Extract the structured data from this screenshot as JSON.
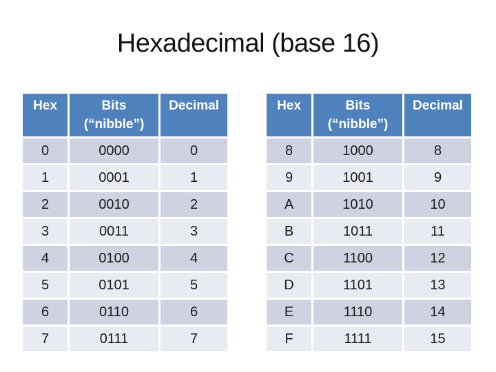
{
  "slide": {
    "title": "Hexadecimal (base 16)"
  },
  "colors": {
    "slide_bg": "#FFFFFF",
    "title_text": "#141414",
    "header_bg": "#4F81BD",
    "header_text": "#FFFFFF",
    "row_band_dark": "#CFD3E1",
    "row_band_light": "#E9EBF3",
    "cell_text": "#1A1A1A"
  },
  "tables": [
    {
      "name": "hex-digits-0-7",
      "header": {
        "hex": "Hex",
        "bits_line1": "Bits",
        "bits_line2": "(“nibble”)",
        "decimal": "Decimal"
      },
      "rows": [
        {
          "hex": "0",
          "bits": "0000",
          "decimal": "0"
        },
        {
          "hex": "1",
          "bits": "0001",
          "decimal": "1"
        },
        {
          "hex": "2",
          "bits": "0010",
          "decimal": "2"
        },
        {
          "hex": "3",
          "bits": "0011",
          "decimal": "3"
        },
        {
          "hex": "4",
          "bits": "0100",
          "decimal": "4"
        },
        {
          "hex": "5",
          "bits": "0101",
          "decimal": "5"
        },
        {
          "hex": "6",
          "bits": "0110",
          "decimal": "6"
        },
        {
          "hex": "7",
          "bits": "0111",
          "decimal": "7"
        }
      ]
    },
    {
      "name": "hex-digits-8-15",
      "header": {
        "hex": "Hex",
        "bits_line1": "Bits",
        "bits_line2": "(“nibble”)",
        "decimal": "Decimal"
      },
      "rows": [
        {
          "hex": "8",
          "bits": "1000",
          "decimal": "8"
        },
        {
          "hex": "9",
          "bits": "1001",
          "decimal": "9"
        },
        {
          "hex": "A",
          "bits": "1010",
          "decimal": "10"
        },
        {
          "hex": "B",
          "bits": "1011",
          "decimal": "11"
        },
        {
          "hex": "C",
          "bits": "1100",
          "decimal": "12"
        },
        {
          "hex": "D",
          "bits": "1101",
          "decimal": "13"
        },
        {
          "hex": "E",
          "bits": "1110",
          "decimal": "14"
        },
        {
          "hex": "F",
          "bits": "1111",
          "decimal": "15"
        }
      ]
    }
  ]
}
